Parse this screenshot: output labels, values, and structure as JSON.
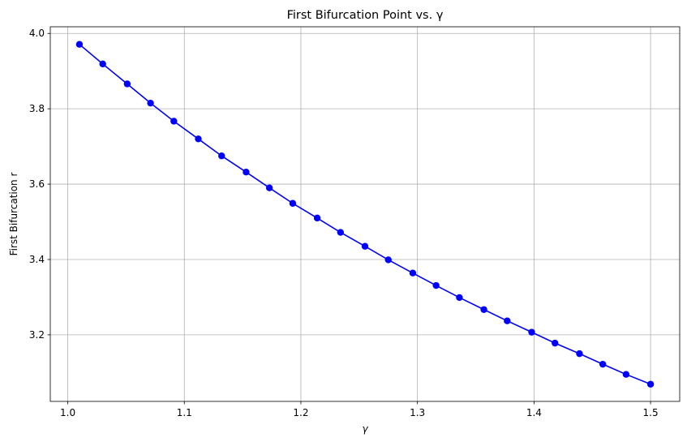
{
  "chart_data": {
    "type": "line",
    "title": "First Bifurcation Point vs. γ",
    "xlabel": "γ",
    "ylabel": "First Bifurcation r",
    "xlim": [
      0.985,
      1.525
    ],
    "ylim": [
      3.0233,
      4.0177
    ],
    "xticks": [
      1.0,
      1.1,
      1.2,
      1.3,
      1.4,
      1.5
    ],
    "xtick_labels": [
      "1.0",
      "1.1",
      "1.2",
      "1.3",
      "1.4",
      "1.5"
    ],
    "yticks": [
      3.2,
      3.4,
      3.6,
      3.8,
      4.0
    ],
    "ytick_labels": [
      "3.2",
      "3.4",
      "3.6",
      "3.8",
      "4.0"
    ],
    "grid": true,
    "color": "#0000ff",
    "marker": "circle",
    "series": [
      {
        "x": [
          1.01,
          1.03,
          1.051,
          1.071,
          1.091,
          1.112,
          1.132,
          1.153,
          1.173,
          1.193,
          1.214,
          1.234,
          1.255,
          1.275,
          1.296,
          1.316,
          1.336,
          1.357,
          1.377,
          1.398,
          1.418,
          1.439,
          1.459,
          1.479,
          1.5
        ],
        "values": [
          3.971,
          3.919,
          3.866,
          3.815,
          3.767,
          3.72,
          3.675,
          3.632,
          3.59,
          3.549,
          3.51,
          3.472,
          3.435,
          3.399,
          3.364,
          3.331,
          3.299,
          3.267,
          3.237,
          3.207,
          3.178,
          3.15,
          3.122,
          3.095,
          3.069
        ]
      }
    ]
  }
}
